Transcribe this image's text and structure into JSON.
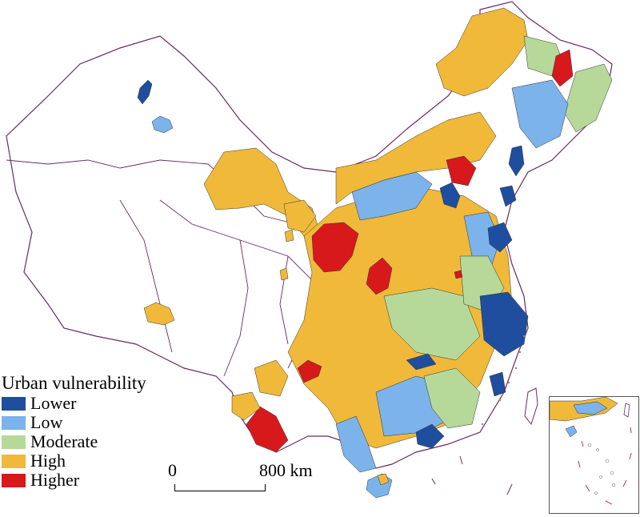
{
  "legend": {
    "title": "Urban vulnerability",
    "items": [
      {
        "label": "Lower",
        "color": "#1f4e9e"
      },
      {
        "label": "Low",
        "color": "#7bb3ea"
      },
      {
        "label": "Moderate",
        "color": "#b6d99a"
      },
      {
        "label": "High",
        "color": "#f0b93a"
      },
      {
        "label": "Higher",
        "color": "#d7191c"
      }
    ]
  },
  "scale_bar": {
    "start_label": "0",
    "end_label": "800 km"
  },
  "colors": {
    "boundary": "#5b1c52",
    "outline": "#6a2a60"
  }
}
